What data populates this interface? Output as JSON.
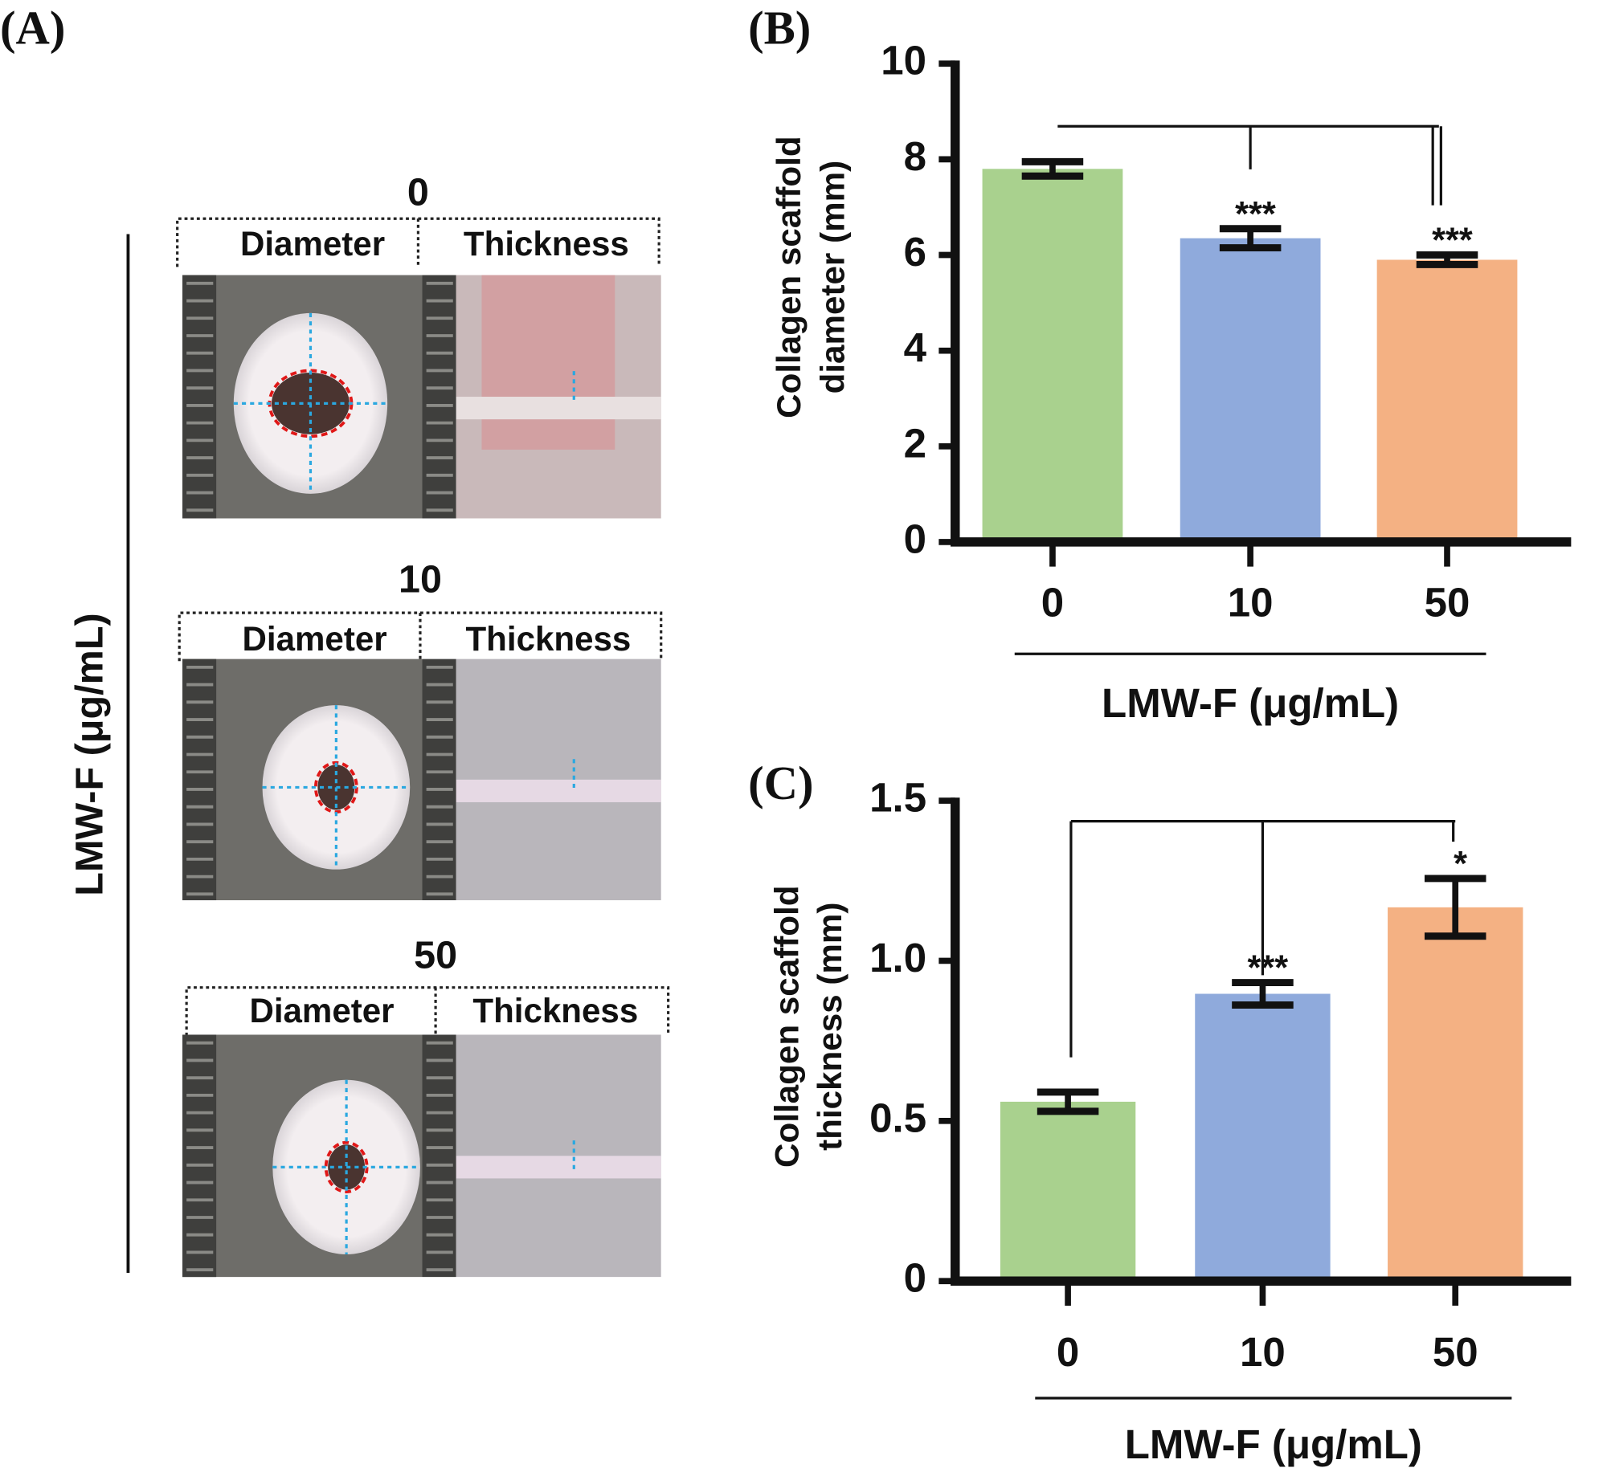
{
  "panel_a": {
    "label": "(A)",
    "axis_label": "LMW-F (μg/mL)",
    "groups": [
      {
        "title": "0",
        "left": "Diameter",
        "right": "Thickness"
      },
      {
        "title": "10",
        "left": "Diameter",
        "right": "Thickness"
      },
      {
        "title": "50",
        "left": "Diameter",
        "right": "Thickness"
      }
    ]
  },
  "chart_data": [
    {
      "type": "bar",
      "panel": "(B)",
      "ylabel": [
        "Collagen scaffold",
        "diameter (mm)"
      ],
      "xlabel": "LMW-F (μg/mL)",
      "categories": [
        "0",
        "10",
        "50"
      ],
      "values": [
        7.8,
        6.35,
        5.9
      ],
      "errors": [
        0.15,
        0.2,
        0.1
      ],
      "colors": [
        "#a9d18e",
        "#8faadc",
        "#f4b183"
      ],
      "ylim": [
        0,
        10
      ],
      "yticks": [
        0,
        2,
        4,
        6,
        8,
        10
      ],
      "annotations": [
        {
          "x": "10",
          "text": "***"
        },
        {
          "x": "50",
          "text": "***"
        }
      ]
    },
    {
      "type": "bar",
      "panel": "(C)",
      "ylabel": [
        "Collagen scaffold",
        "thickness (mm)"
      ],
      "xlabel": "LMW-F (μg/mL)",
      "categories": [
        "0",
        "10",
        "50"
      ],
      "values": [
        0.56,
        0.897,
        1.167
      ],
      "errors": [
        0.03,
        0.035,
        0.09
      ],
      "colors": [
        "#a9d18e",
        "#8faadc",
        "#f4b183"
      ],
      "ylim": [
        0,
        1.5
      ],
      "yticks": [
        0,
        0.5,
        {
          "value": 1,
          "label": "1.0"
        },
        1.5
      ],
      "annotations": [
        {
          "x": "10",
          "text": "***"
        },
        {
          "x": "50",
          "text": "*"
        }
      ]
    }
  ]
}
